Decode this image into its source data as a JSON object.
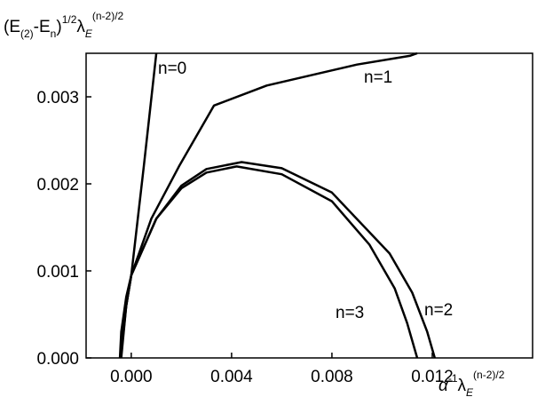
{
  "chart_data": {
    "type": "line",
    "ylabel_parts": [
      "(E",
      "(2)",
      "-E",
      "n",
      ")",
      "1/2",
      "λ",
      "E",
      "(n-2)/2"
    ],
    "xlabel_parts": [
      "α",
      "-1",
      "λ",
      "E",
      "(n-2)/2"
    ],
    "xlim": [
      -0.0018,
      0.016
    ],
    "ylim": [
      0,
      0.0035
    ],
    "xticks": [
      {
        "value": 0,
        "label": "0.000"
      },
      0.004,
      0.008,
      0.012
    ],
    "yticks": [
      {
        "value": 0,
        "label": "0.000"
      },
      0.001,
      0.002,
      0.003
    ],
    "series": [
      {
        "name": "n=0",
        "color": "#000000",
        "x": [
          -0.00042,
          -0.00035,
          -0.0002,
          0,
          0.0005,
          0.001
        ],
        "values": [
          0,
          0.0003,
          0.0006,
          0.00095,
          0.0022,
          0.0035
        ]
      },
      {
        "name": "n=1",
        "color": "#000000",
        "x": [
          -0.00045,
          -0.0004,
          -0.0002,
          0,
          0.0008,
          0.0019,
          0.0033,
          0.0054,
          0.009,
          0.0111,
          0.0114
        ],
        "values": [
          0,
          0.0003,
          0.0007,
          0.00095,
          0.0016,
          0.0022,
          0.0029,
          0.00313,
          0.00337,
          0.00347,
          0.0035
        ]
      },
      {
        "name": "n=2",
        "color": "#000000",
        "x": [
          -0.0004,
          -0.0002,
          0,
          0.001,
          0.002,
          0.003,
          0.0044,
          0.006,
          0.008,
          0.0103,
          0.0112,
          0.0118,
          0.0121
        ],
        "values": [
          0,
          0.0006,
          0.00095,
          0.0016,
          0.00198,
          0.00217,
          0.00225,
          0.00218,
          0.0019,
          0.0012,
          0.00075,
          0.0003,
          0
        ]
      },
      {
        "name": "n=3",
        "color": "#000000",
        "x": [
          -0.00042,
          -0.0002,
          0,
          0.001,
          0.002,
          0.003,
          0.0042,
          0.006,
          0.008,
          0.0095,
          0.0105,
          0.011,
          0.0114
        ],
        "values": [
          0,
          0.0006,
          0.00095,
          0.0016,
          0.00195,
          0.00213,
          0.0022,
          0.00211,
          0.0018,
          0.0013,
          0.0008,
          0.0004,
          0
        ]
      }
    ]
  }
}
